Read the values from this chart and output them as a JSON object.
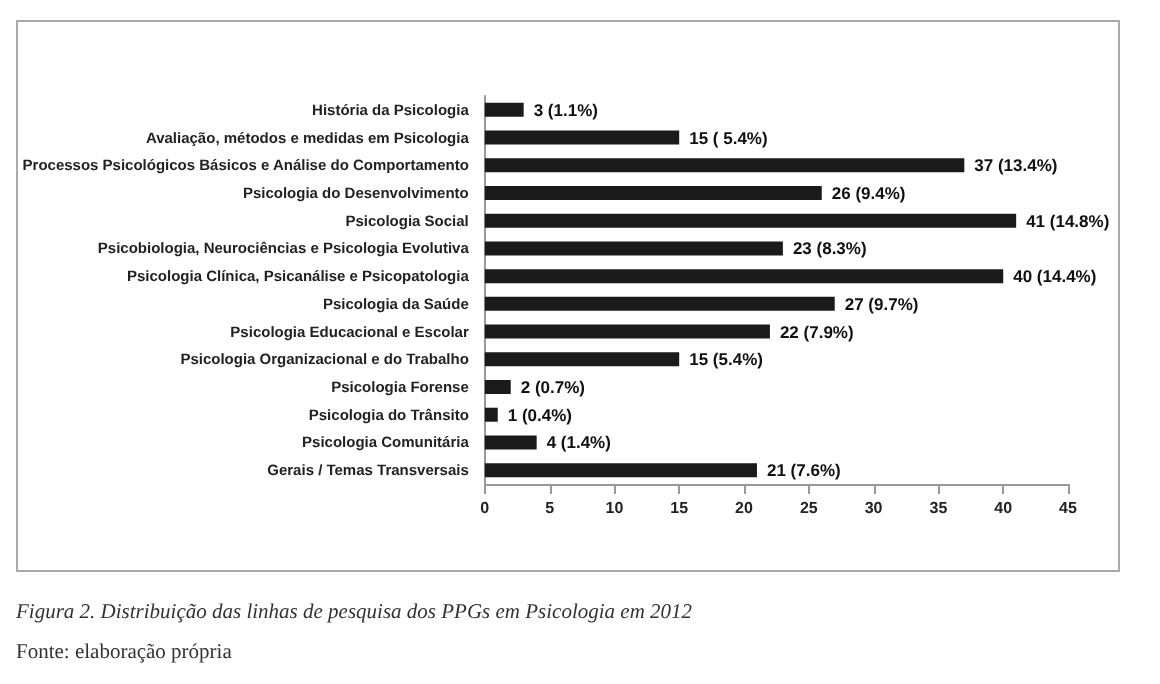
{
  "chart_data": {
    "type": "bar",
    "orientation": "horizontal",
    "categories": [
      "História da Psicologia",
      "Avaliação, métodos e medidas em Psicologia",
      "Processos Psicológicos Básicos e Análise do Comportamento",
      "Psicologia do Desenvolvimento",
      "Psicologia Social",
      "Psicobiologia, Neurociências e Psicologia Evolutiva",
      "Psicologia Clínica, Psicanálise e Psicopatologia",
      "Psicologia da Saúde",
      "Psicologia Educacional e Escolar",
      "Psicologia Organizacional e do Trabalho",
      "Psicologia Forense",
      "Psicologia do Trânsito",
      "Psicologia Comunitária",
      "Gerais / Temas Transversais"
    ],
    "values": [
      3,
      15,
      37,
      26,
      41,
      23,
      40,
      27,
      22,
      15,
      2,
      1,
      4,
      21
    ],
    "value_labels": [
      "3 (1.1%)",
      "15 ( 5.4%)",
      "37 (13.4%)",
      "26 (9.4%)",
      "41 (14.8%)",
      "23 (8.3%)",
      "40 (14.4%)",
      "27 (9.7%)",
      "22 (7.9%)",
      "15 (5.4%)",
      "2 (0.7%)",
      "1 (0.4%)",
      "4 (1.4%)",
      "21 (7.6%)"
    ],
    "color": "#1a1a1a",
    "xlim": [
      0,
      45
    ],
    "xticks": [
      0,
      5,
      10,
      15,
      20,
      25,
      30,
      35,
      40,
      45
    ],
    "grid": false,
    "annotations": [
      "Figura 2. Distribuição das linhas de pesquisa dos PPGs em Psicologia em 2012",
      "Fonte: elaboração própria"
    ]
  }
}
